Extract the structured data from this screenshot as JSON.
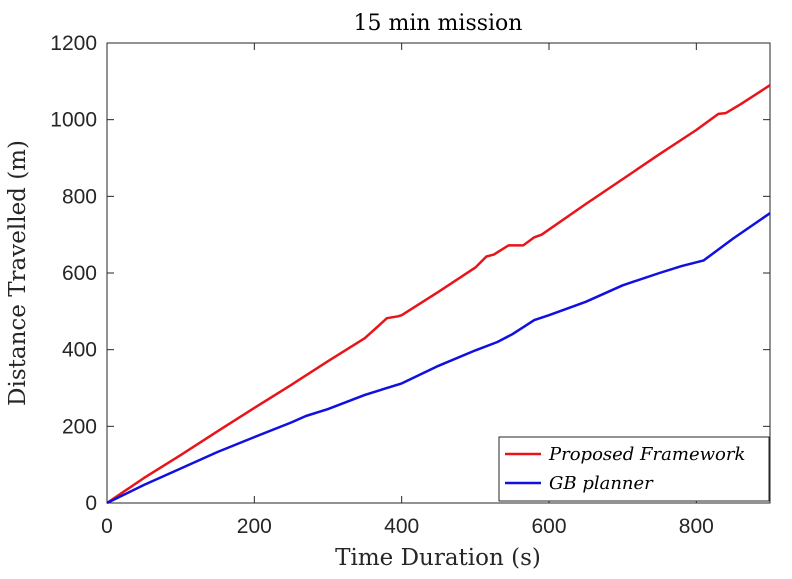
{
  "chart_data": {
    "type": "line",
    "title": "15 min mission",
    "xlabel": "Time Duration (s)",
    "ylabel": "Distance Travelled (m)",
    "xlim": [
      0,
      900
    ],
    "ylim": [
      0,
      1200
    ],
    "xticks": [
      0,
      200,
      400,
      600,
      800
    ],
    "yticks": [
      0,
      200,
      400,
      600,
      800,
      1000,
      1200
    ],
    "grid": false,
    "legend_position": "bottom-right",
    "series": [
      {
        "name": "Proposed Framework",
        "color": "#e8141a",
        "x": [
          0,
          50,
          100,
          150,
          200,
          250,
          300,
          350,
          380,
          395,
          400,
          450,
          500,
          515,
          525,
          545,
          565,
          580,
          590,
          650,
          700,
          750,
          800,
          830,
          840,
          860,
          900
        ],
        "y": [
          0,
          65,
          125,
          187,
          248,
          308,
          370,
          430,
          482,
          487,
          490,
          551,
          614,
          643,
          648,
          672,
          672,
          693,
          700,
          780,
          845,
          910,
          973,
          1015,
          1017,
          1040,
          1090
        ]
      },
      {
        "name": "GB planner",
        "color": "#1010e0",
        "x": [
          0,
          50,
          100,
          150,
          200,
          250,
          270,
          300,
          350,
          400,
          450,
          500,
          530,
          550,
          580,
          600,
          650,
          700,
          750,
          780,
          810,
          850,
          900
        ],
        "y": [
          0,
          47,
          90,
          133,
          172,
          210,
          227,
          245,
          282,
          312,
          358,
          398,
          420,
          440,
          477,
          490,
          525,
          568,
          600,
          618,
          633,
          690,
          756
        ]
      }
    ]
  }
}
